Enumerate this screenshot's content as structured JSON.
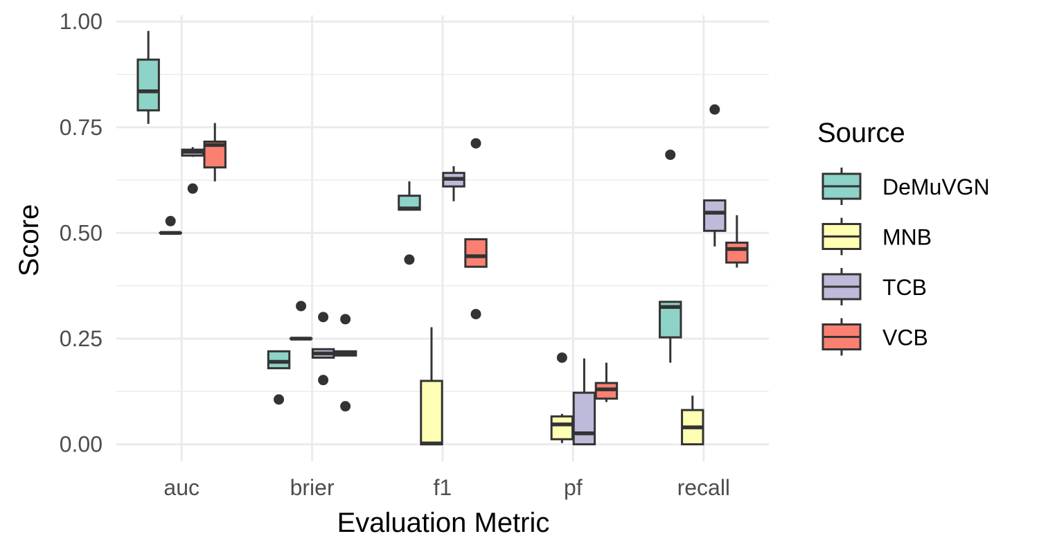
{
  "chart_data": {
    "type": "boxplot",
    "xlabel": "Evaluation Metric",
    "ylabel": "Score",
    "ylim": [
      -0.04,
      1.015
    ],
    "yticks": [
      0.0,
      0.25,
      0.5,
      0.75,
      1.0
    ],
    "ytick_labels": [
      "0.00",
      "0.25",
      "0.50",
      "0.75",
      "1.00"
    ],
    "categories": [
      "auc",
      "brier",
      "f1",
      "pf",
      "recall"
    ],
    "grid": true,
    "legend": {
      "title": "Source",
      "placement": "right"
    },
    "series": [
      {
        "name": "DeMuVGN",
        "color": "#8dd3c7",
        "boxes": [
          {
            "min": 0.758,
            "q1": 0.79,
            "median": 0.835,
            "q3": 0.91,
            "max": 0.978,
            "outliers": []
          },
          {
            "min": 0.18,
            "q1": 0.18,
            "median": 0.195,
            "q3": 0.22,
            "max": 0.22,
            "outliers": [
              0.106
            ]
          },
          {
            "min": 0.555,
            "q1": 0.555,
            "median": 0.558,
            "q3": 0.588,
            "max": 0.622,
            "outliers": [
              0.437
            ]
          },
          null,
          {
            "min": 0.193,
            "q1": 0.253,
            "median": 0.325,
            "q3": 0.337,
            "max": 0.337,
            "outliers": [
              0.685
            ]
          }
        ]
      },
      {
        "name": "MNB",
        "color": "#ffffb3",
        "boxes": [
          {
            "min": 0.5,
            "q1": 0.5,
            "median": 0.5,
            "q3": 0.5,
            "max": 0.5,
            "outliers": [
              0.528
            ]
          },
          {
            "min": 0.25,
            "q1": 0.25,
            "median": 0.25,
            "q3": 0.25,
            "max": 0.25,
            "outliers": [
              0.327
            ]
          },
          {
            "min": 0.0,
            "q1": 0.0,
            "median": 0.002,
            "q3": 0.15,
            "max": 0.277,
            "outliers": []
          },
          {
            "min": 0.003,
            "q1": 0.012,
            "median": 0.047,
            "q3": 0.066,
            "max": 0.072,
            "outliers": [
              0.205
            ]
          },
          {
            "min": 0.0,
            "q1": 0.0,
            "median": 0.04,
            "q3": 0.081,
            "max": 0.115,
            "outliers": []
          }
        ]
      },
      {
        "name": "TCB",
        "color": "#bebada",
        "boxes": [
          {
            "min": 0.68,
            "q1": 0.683,
            "median": 0.692,
            "q3": 0.697,
            "max": 0.703,
            "outliers": [
              0.605
            ]
          },
          {
            "min": 0.205,
            "q1": 0.205,
            "median": 0.215,
            "q3": 0.225,
            "max": 0.225,
            "outliers": [
              0.301,
              0.152
            ]
          },
          {
            "min": 0.575,
            "q1": 0.61,
            "median": 0.628,
            "q3": 0.642,
            "max": 0.658,
            "outliers": []
          },
          {
            "min": 0.0,
            "q1": 0.0,
            "median": 0.026,
            "q3": 0.122,
            "max": 0.203,
            "outliers": []
          },
          {
            "min": 0.468,
            "q1": 0.505,
            "median": 0.548,
            "q3": 0.577,
            "max": 0.577,
            "outliers": [
              0.792
            ]
          }
        ]
      },
      {
        "name": "VCB",
        "color": "#fb8072",
        "boxes": [
          {
            "min": 0.622,
            "q1": 0.655,
            "median": 0.708,
            "q3": 0.716,
            "max": 0.76,
            "outliers": []
          },
          {
            "min": 0.21,
            "q1": 0.21,
            "median": 0.215,
            "q3": 0.22,
            "max": 0.22,
            "outliers": [
              0.296,
              0.09
            ]
          },
          {
            "min": 0.42,
            "q1": 0.42,
            "median": 0.445,
            "q3": 0.485,
            "max": 0.485,
            "outliers": [
              0.712,
              0.308
            ]
          },
          {
            "min": 0.1,
            "q1": 0.108,
            "median": 0.13,
            "q3": 0.145,
            "max": 0.193,
            "outliers": []
          },
          {
            "min": 0.418,
            "q1": 0.43,
            "median": 0.462,
            "q3": 0.477,
            "max": 0.542,
            "outliers": []
          }
        ]
      }
    ]
  }
}
